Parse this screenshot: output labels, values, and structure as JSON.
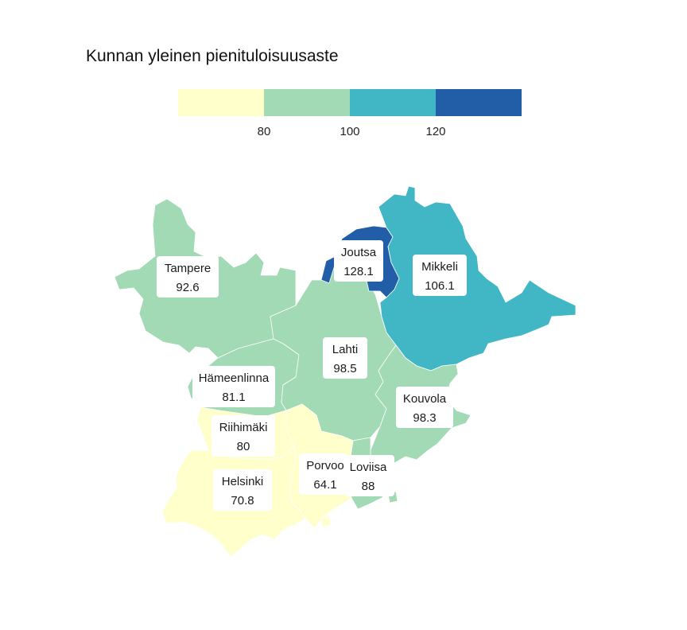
{
  "title": "Kunnan yleinen pienituloisuusaste",
  "legend": {
    "ticks": [
      "80",
      "100",
      "120"
    ],
    "bins": [
      {
        "from": null,
        "to": 80,
        "color": "#ffffcc"
      },
      {
        "from": 80,
        "to": 100,
        "color": "#a1dab4"
      },
      {
        "from": 100,
        "to": 120,
        "color": "#41b6c4"
      },
      {
        "from": 120,
        "to": null,
        "color": "#225ea8"
      }
    ]
  },
  "colors": {
    "bin1": "#ffffcc",
    "bin2": "#a1dab4",
    "bin3": "#41b6c4",
    "bin4": "#225ea8",
    "border": "#ffffff",
    "background": "#ffffff"
  },
  "chart_data": {
    "type": "choropleth",
    "title": "Kunnan yleinen pienituloisuusaste",
    "regions": [
      {
        "name": "Tampere",
        "value": "92.6"
      },
      {
        "name": "Joutsa",
        "value": "128.1"
      },
      {
        "name": "Mikkeli",
        "value": "106.1"
      },
      {
        "name": "Lahti",
        "value": "98.5"
      },
      {
        "name": "Hämeenlinna",
        "value": "81.1"
      },
      {
        "name": "Kouvola",
        "value": "98.3"
      },
      {
        "name": "Riihimäki",
        "value": "80"
      },
      {
        "name": "Porvoo",
        "value": "64.1"
      },
      {
        "name": "Loviisa",
        "value": "88"
      },
      {
        "name": "Helsinki",
        "value": "70.8"
      }
    ]
  }
}
